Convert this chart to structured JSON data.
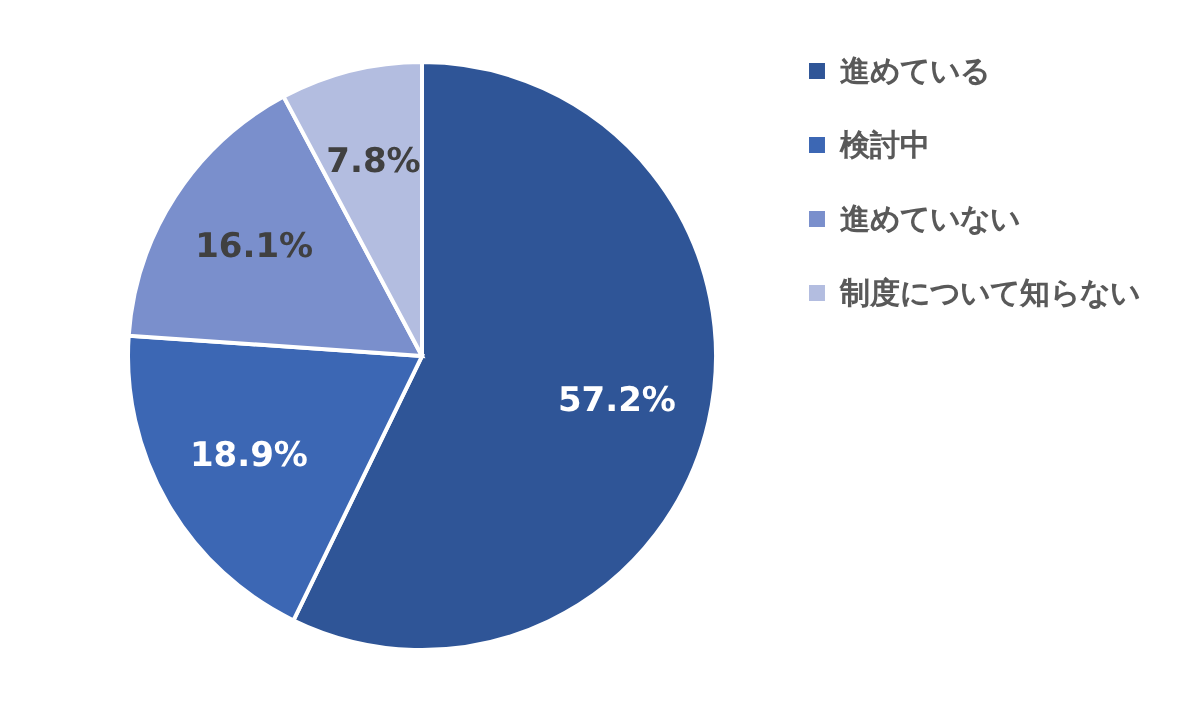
{
  "chart_data": {
    "type": "pie",
    "categories": [
      "進めている",
      "検討中",
      "進めていない",
      "制度について知らない"
    ],
    "values": [
      57.2,
      18.9,
      16.1,
      7.8
    ],
    "colors": [
      "#2f5597",
      "#3c67b4",
      "#7a8fcc",
      "#b3bde0"
    ],
    "value_labels": [
      "57.2%",
      "18.9%",
      "16.1%",
      "7.8%"
    ],
    "legend": "right"
  }
}
